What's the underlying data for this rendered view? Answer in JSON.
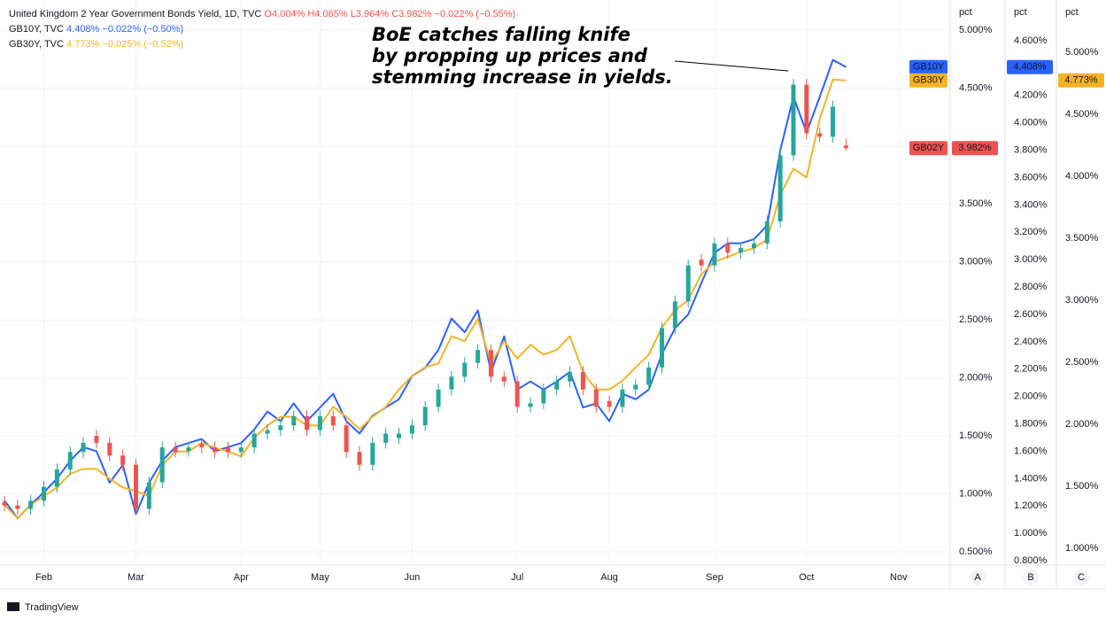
{
  "header": {
    "title": "United Kingdom 2 Year Government Bonds Yield, 1D, TVC",
    "ohlc": [
      "O4.004%",
      "H4.065%",
      "L3.964%",
      "C3.982%"
    ],
    "change": "−0.022% (−0.55%)",
    "lines": [
      {
        "name": "GB10Y, TVC",
        "value": "4.408%",
        "change": "−0.022% (−0.50%)",
        "color": "#2962ff"
      },
      {
        "name": "GB30Y, TVC",
        "value": "4.773%",
        "change": "−0.025% (−0.52%)",
        "color": "#f5b325"
      }
    ]
  },
  "footer": "TradingView",
  "chart_data": {
    "type": "candlestick",
    "annotation": [
      "BoE catches falling knife",
      "by propping up prices and",
      "stemming increase in yields."
    ],
    "grid": true,
    "axis_titles": [
      "pct",
      "pct",
      "pct"
    ],
    "axis_names": [
      "A",
      "B",
      "C"
    ],
    "categories": [
      null,
      null,
      null,
      "Feb",
      null,
      null,
      null,
      null,
      null,
      null,
      "Mar",
      null,
      null,
      null,
      null,
      null,
      null,
      null,
      "Apr",
      null,
      null,
      null,
      null,
      null,
      "May",
      null,
      null,
      null,
      null,
      null,
      null,
      "Jun",
      null,
      null,
      null,
      null,
      null,
      null,
      null,
      "Jul",
      null,
      null,
      null,
      null,
      null,
      null,
      "Aug",
      null,
      null,
      null,
      null,
      null,
      null,
      null,
      "Sep",
      null,
      null,
      null,
      null,
      null,
      null,
      "Oct",
      null,
      null,
      null,
      null,
      null,
      null,
      "Nov",
      null,
      null,
      null
    ],
    "ylim": [
      0.385,
      5.26
    ],
    "yticks": [
      {
        "value": 0.5,
        "label": "0.500%"
      },
      {
        "value": 1.0,
        "label": "1.000%"
      },
      {
        "value": 1.5,
        "label": "1.500%"
      },
      {
        "value": 2.0,
        "label": "2.000%"
      },
      {
        "value": 2.5,
        "label": "2.500%"
      },
      {
        "value": 3.0,
        "label": "3.000%"
      },
      {
        "value": 3.5,
        "label": "3.500%"
      },
      {
        "value": 4.0,
        "label": "4.000%"
      },
      {
        "value": 4.5,
        "label": "4.500%"
      },
      {
        "value": 5.0,
        "label": "5.000%"
      }
    ],
    "y2lim": [
      0.768,
      4.898
    ],
    "y2ticks": [
      {
        "value": 0.8,
        "label": "0.800%"
      },
      {
        "value": 1.0,
        "label": "1.000%"
      },
      {
        "value": 1.2,
        "label": "1.200%"
      },
      {
        "value": 1.4,
        "label": "1.400%"
      },
      {
        "value": 1.6,
        "label": "1.600%"
      },
      {
        "value": 1.8,
        "label": "1.800%"
      },
      {
        "value": 2.0,
        "label": "2.000%"
      },
      {
        "value": 2.2,
        "label": "2.200%"
      },
      {
        "value": 2.4,
        "label": "2.400%"
      },
      {
        "value": 2.6,
        "label": "2.600%"
      },
      {
        "value": 2.8,
        "label": "2.800%"
      },
      {
        "value": 3.0,
        "label": "3.000%"
      },
      {
        "value": 3.2,
        "label": "3.200%"
      },
      {
        "value": 3.4,
        "label": "3.400%"
      },
      {
        "value": 3.6,
        "label": "3.600%"
      },
      {
        "value": 3.8,
        "label": "3.800%"
      },
      {
        "value": 4.0,
        "label": "4.000%"
      },
      {
        "value": 4.2,
        "label": "4.200%"
      },
      {
        "value": 4.4,
        "label": "4.400%"
      },
      {
        "value": 4.6,
        "label": "4.600%"
      }
    ],
    "y3lim": [
      0.864,
      5.421
    ],
    "y3ticks": [
      {
        "value": 1.0,
        "label": "1.000%"
      },
      {
        "value": 1.5,
        "label": "1.500%"
      },
      {
        "value": 2.0,
        "label": "2.000%"
      },
      {
        "value": 2.5,
        "label": "2.500%"
      },
      {
        "value": 3.0,
        "label": "3.000%"
      },
      {
        "value": 3.5,
        "label": "3.500%"
      },
      {
        "value": 4.0,
        "label": "4.000%"
      },
      {
        "value": 4.5,
        "label": "4.500%"
      },
      {
        "value": 5.0,
        "label": "5.000%"
      }
    ],
    "series": [
      {
        "name": "GB02Y",
        "type": "candlestick",
        "axis": "y",
        "color": "#ef5350",
        "up_color": "#26a69a",
        "down_color": "#ef5350",
        "last_label": "3.982%",
        "open": [
          0.93,
          0.9,
          0.87,
          0.94,
          1.06,
          1.21,
          1.36,
          1.5,
          1.44,
          1.33,
          1.25,
          0.87,
          1.1,
          1.4,
          1.37,
          1.43,
          1.4,
          1.4,
          1.36,
          1.4,
          1.52,
          1.55,
          1.59,
          1.67,
          1.55,
          1.67,
          1.59,
          1.36,
          1.25,
          1.44,
          1.48,
          1.52,
          1.59,
          1.75,
          1.9,
          2.01,
          2.13,
          2.24,
          2.01,
          1.97,
          1.75,
          1.78,
          1.9,
          1.97,
          2.05,
          1.9,
          1.8,
          1.75,
          1.9,
          1.94,
          2.09,
          2.43,
          2.66,
          3.02,
          2.97,
          3.16,
          3.08,
          3.12,
          3.16,
          3.35,
          3.92,
          4.53,
          4.11,
          4.08,
          4.004,
          null,
          null,
          null,
          null,
          null,
          null,
          null
        ],
        "high": [
          0.98,
          0.95,
          0.99,
          1.11,
          1.26,
          1.41,
          1.49,
          1.55,
          1.49,
          1.38,
          1.3,
          1.15,
          1.45,
          1.45,
          1.45,
          1.48,
          1.45,
          1.45,
          1.45,
          1.57,
          1.6,
          1.64,
          1.72,
          1.72,
          1.72,
          1.72,
          1.64,
          1.41,
          1.49,
          1.57,
          1.57,
          1.64,
          1.8,
          1.95,
          2.06,
          2.18,
          2.29,
          2.29,
          2.06,
          2.02,
          1.83,
          1.95,
          2.02,
          2.1,
          2.1,
          1.95,
          1.85,
          1.95,
          1.99,
          2.14,
          2.48,
          2.71,
          3.02,
          3.07,
          3.21,
          3.21,
          3.17,
          3.21,
          3.4,
          3.97,
          4.58,
          4.58,
          4.16,
          4.39,
          4.065,
          null,
          null,
          null,
          null,
          null,
          null,
          null
        ],
        "low": [
          0.85,
          0.82,
          0.82,
          0.89,
          1.01,
          1.16,
          1.31,
          1.39,
          1.28,
          1.2,
          0.82,
          0.82,
          1.05,
          1.31,
          1.32,
          1.35,
          1.31,
          1.31,
          1.31,
          1.35,
          1.47,
          1.5,
          1.54,
          1.5,
          1.5,
          1.54,
          1.31,
          1.2,
          1.2,
          1.39,
          1.43,
          1.47,
          1.54,
          1.7,
          1.85,
          1.96,
          2.08,
          1.96,
          1.92,
          1.7,
          1.7,
          1.73,
          1.85,
          1.92,
          1.85,
          1.7,
          1.7,
          1.7,
          1.85,
          1.89,
          2.04,
          2.38,
          2.61,
          2.92,
          2.92,
          3.03,
          3.03,
          3.07,
          3.11,
          3.3,
          3.87,
          4.06,
          4.03,
          4.03,
          3.964,
          null,
          null,
          null,
          null,
          null,
          null,
          null
        ],
        "close": [
          0.9,
          0.87,
          0.94,
          1.06,
          1.21,
          1.36,
          1.44,
          1.44,
          1.33,
          1.25,
          0.87,
          1.1,
          1.4,
          1.36,
          1.4,
          1.4,
          1.36,
          1.36,
          1.4,
          1.52,
          1.55,
          1.59,
          1.67,
          1.55,
          1.67,
          1.59,
          1.36,
          1.25,
          1.44,
          1.52,
          1.52,
          1.59,
          1.75,
          1.9,
          2.01,
          2.13,
          2.24,
          2.01,
          1.97,
          1.75,
          1.78,
          1.9,
          1.97,
          2.05,
          1.9,
          1.75,
          1.75,
          1.9,
          1.94,
          2.09,
          2.43,
          2.66,
          2.97,
          2.97,
          3.16,
          3.08,
          3.12,
          3.16,
          3.35,
          3.92,
          4.53,
          4.11,
          4.08,
          4.34,
          3.982,
          null,
          null,
          null,
          null,
          null,
          null,
          null
        ]
      },
      {
        "name": "GB10Y",
        "type": "line",
        "axis": "y2",
        "color": "#2962ff",
        "last_label": "4.408%",
        "values": [
          1.24,
          1.11,
          1.21,
          1.3,
          1.4,
          1.53,
          1.63,
          1.6,
          1.37,
          1.5,
          1.14,
          1.37,
          1.53,
          1.63,
          1.66,
          1.69,
          1.6,
          1.63,
          1.66,
          1.76,
          1.89,
          1.82,
          1.95,
          1.82,
          1.92,
          2.02,
          1.82,
          1.73,
          1.86,
          1.92,
          1.98,
          2.15,
          2.21,
          2.34,
          2.57,
          2.47,
          2.63,
          2.18,
          2.44,
          2.05,
          2.11,
          2.05,
          2.11,
          2.18,
          1.92,
          1.95,
          1.82,
          2.02,
          1.98,
          2.05,
          2.31,
          2.5,
          2.6,
          2.83,
          3.05,
          3.12,
          3.12,
          3.15,
          3.25,
          3.8,
          4.19,
          3.93,
          4.19,
          4.46,
          4.408,
          null,
          null,
          null,
          null,
          null,
          null,
          null
        ]
      },
      {
        "name": "GB30Y",
        "type": "line",
        "axis": "y3",
        "color": "#f5b325",
        "last_label": "4.773%",
        "values": [
          1.35,
          1.24,
          1.35,
          1.42,
          1.49,
          1.6,
          1.64,
          1.64,
          1.56,
          1.49,
          1.46,
          1.42,
          1.67,
          1.78,
          1.78,
          1.85,
          1.81,
          1.78,
          1.74,
          1.89,
          1.99,
          2.06,
          2.06,
          1.99,
          1.99,
          2.14,
          2.06,
          1.96,
          2.06,
          2.14,
          2.28,
          2.39,
          2.46,
          2.49,
          2.71,
          2.67,
          2.85,
          2.49,
          2.67,
          2.53,
          2.64,
          2.56,
          2.6,
          2.71,
          2.42,
          2.28,
          2.28,
          2.35,
          2.46,
          2.56,
          2.78,
          2.92,
          3.0,
          3.21,
          3.31,
          3.35,
          3.39,
          3.42,
          3.49,
          3.85,
          4.06,
          3.99,
          4.46,
          4.78,
          4.773,
          null,
          null,
          null,
          null,
          null,
          null,
          null
        ]
      }
    ]
  }
}
